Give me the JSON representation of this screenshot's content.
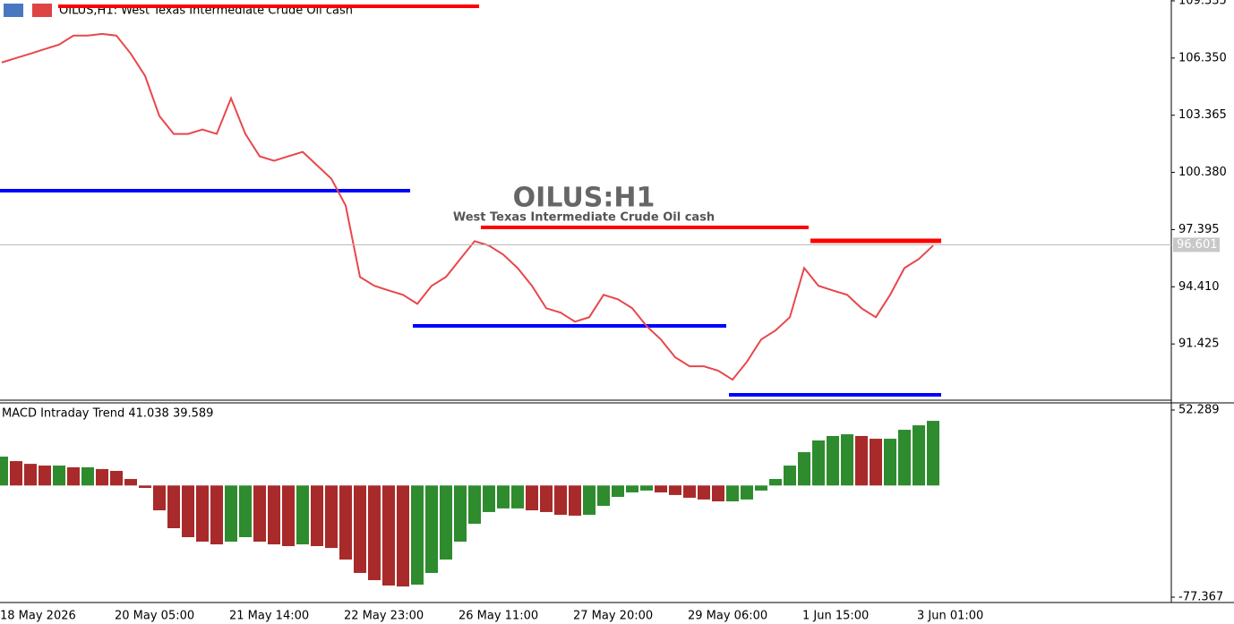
{
  "chart_data": [
    {
      "type": "line",
      "header": "OILUS,H1:  West Texas Intermediate Crude Oil cash",
      "title": "OILUS:H1",
      "subtitle": "West Texas Intermediate Crude Oil cash",
      "categories": [
        "18 May 2026",
        null,
        null,
        null,
        null,
        null,
        null,
        null,
        "20 May 05:00",
        null,
        null,
        null,
        null,
        null,
        null,
        null,
        "21 May 14:00",
        null,
        null,
        null,
        null,
        null,
        null,
        null,
        "22 May 23:00",
        null,
        null,
        null,
        null,
        null,
        null,
        null,
        "26 May 11:00",
        null,
        null,
        null,
        null,
        null,
        null,
        null,
        "27 May 20:00",
        null,
        null,
        null,
        null,
        null,
        null,
        null,
        "29 May 06:00",
        null,
        null,
        null,
        null,
        null,
        null,
        null,
        "1 Jun 15:00",
        null,
        null,
        null,
        null,
        null,
        null,
        null,
        "3 Jun 01:00",
        null
      ],
      "values": [
        106.12,
        106.35,
        106.58,
        106.82,
        107.05,
        107.52,
        107.52,
        107.61,
        107.52,
        106.58,
        105.42,
        103.32,
        102.39,
        102.39,
        102.62,
        102.39,
        104.25,
        102.39,
        101.22,
        100.99,
        101.22,
        101.45,
        100.75,
        100.05,
        98.65,
        94.92,
        94.46,
        94.22,
        93.99,
        93.52,
        94.46,
        94.92,
        95.86,
        96.79,
        96.56,
        96.09,
        95.39,
        94.46,
        93.29,
        93.06,
        92.59,
        92.82,
        93.99,
        93.76,
        93.29,
        92.36,
        91.66,
        90.73,
        90.26,
        90.26,
        90.03,
        89.56,
        90.49,
        91.66,
        92.13,
        92.82,
        95.39,
        94.46,
        94.22,
        93.99,
        93.29,
        92.82,
        93.99,
        95.39,
        95.86,
        96.56
      ],
      "color": "#e8474c",
      "last_price": 96.601,
      "ylim": [
        88.49,
        109.38
      ],
      "yticks": [
        109.335,
        {
          "value": 106.35,
          "label": "106.350"
        },
        103.365,
        {
          "value": 100.38,
          "label": "100.380"
        },
        97.395,
        {
          "value": 94.41,
          "label": "94.410"
        },
        91.425
      ]
    },
    {
      "type": "bar",
      "title": "MACD Intraday Trend  41.038 39.589",
      "values": [
        20.0,
        16.9,
        15.0,
        13.8,
        13.8,
        12.6,
        12.6,
        11.4,
        10.1,
        4.5,
        -1.7,
        -17.2,
        -29.6,
        -35.8,
        -38.9,
        -40.8,
        -38.9,
        -35.8,
        -38.9,
        -40.8,
        -42.0,
        -40.8,
        -42.0,
        -43.3,
        -51.3,
        -60.6,
        -65.6,
        -69.3,
        -70.0,
        -68.7,
        -60.6,
        -51.3,
        -38.9,
        -26.5,
        -18.4,
        -15.9,
        -15.9,
        -17.2,
        -18.4,
        -20.3,
        -20.9,
        -20.3,
        -14.1,
        -7.9,
        -4.8,
        -3.5,
        -4.8,
        -6.6,
        -8.5,
        -9.7,
        -11.0,
        -11.0,
        -9.7,
        -3.5,
        4.5,
        13.8,
        23.1,
        31.2,
        34.3,
        35.5,
        34.3,
        32.4,
        32.4,
        38.6,
        41.7,
        44.8
      ],
      "up_color": "#2e8b2e",
      "down_color": "#a82a2a",
      "ylim": [
        -80.47,
        56.63
      ],
      "yticks": [
        52.289,
        -77.367
      ]
    }
  ]
}
